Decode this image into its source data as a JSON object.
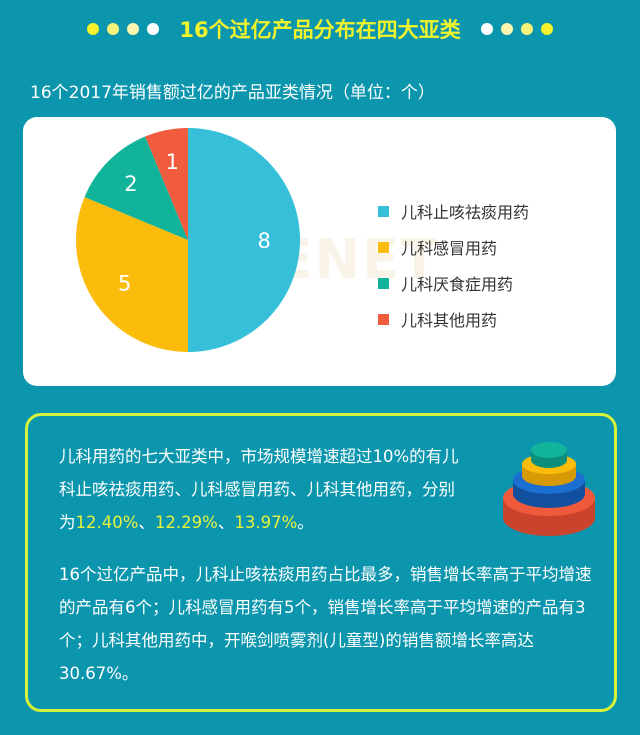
{
  "header": {
    "title": "16个过亿产品分布在四大亚类",
    "dot_colors": [
      "#f5f02a",
      "#f7f27a",
      "#faf6b0",
      "#ffffff"
    ]
  },
  "subtitle": "16个2017年销售额过亿的产品亚类情况（单位：个）",
  "watermark": "米内MENET",
  "chart_data": {
    "type": "pie",
    "title": "16个2017年销售额过亿的产品亚类情况（单位：个）",
    "categories": [
      "儿科止咳祛痰用药",
      "儿科感冒用药",
      "儿科厌食症用药",
      "儿科其他用药"
    ],
    "values": [
      8,
      5,
      2,
      1
    ],
    "colors": [
      "#36bfd8",
      "#fbbc0b",
      "#11b49a",
      "#f15c3e"
    ],
    "legend": "right"
  },
  "text": {
    "p1_a": "儿科用药的七大亚类中，市场规模增速超过10%的有儿科止咳祛痰用药、儿科感冒用药、儿科其他用药，分别为",
    "p1_v1": "12.40%",
    "sep1": "、",
    "p1_v2": "12.29%",
    "sep2": "、",
    "p1_v3": "13.97%",
    "p1_end": "。",
    "p2": "16个过亿产品中，儿科止咳祛痰用药占比最多，销售增长率高于平均增速的产品有6个；儿科感冒用药有5个，销售增长率高于平均增速的产品有3个；儿科其他用药中，开喉剑喷雾剂(儿童型)的销售额增长率高达30.67%。"
  }
}
